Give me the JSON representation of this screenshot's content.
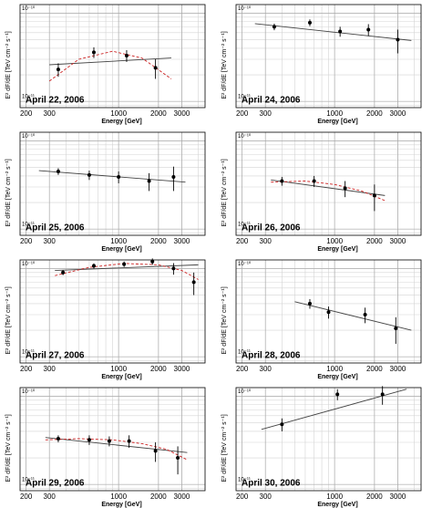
{
  "chart_data": [
    {
      "type": "scatter",
      "title": "April 22, 2006",
      "xlabel": "Energy [GeV]",
      "ylabel": "E² dF/dE [TeV cm⁻² s⁻¹]",
      "xlim": [
        180,
        4500
      ],
      "ylim": [
        8.5e-12,
        1.25e-10
      ],
      "xticks": [
        200,
        300,
        1000,
        2000,
        3000
      ],
      "yticks": [
        {
          "value": 1e-11,
          "label": "10⁻¹¹"
        },
        {
          "value": 1e-10,
          "label": "10⁻¹⁰"
        }
      ],
      "grid": true,
      "color": "#000000",
      "x": [
        350,
        650,
        1150,
        1900
      ],
      "values": [
        2.3e-11,
        3.6e-11,
        3.3e-11,
        2.4e-11
      ],
      "errors": [
        4e-12,
        5e-12,
        5e-12,
        6e-12
      ],
      "fit_x": [
        300,
        2500
      ],
      "fit_values": [
        2.6e-11,
        3.1e-11
      ],
      "curve_x": [
        300,
        500,
        900,
        1500,
        2500
      ],
      "curve_values": [
        1.7e-11,
        3e-11,
        3.7e-11,
        3.1e-11,
        1.8e-11
      ],
      "curve_color": "#cc2222"
    },
    {
      "type": "scatter",
      "title": "April 24, 2006",
      "xlabel": "Energy [GeV]",
      "ylabel": "E² dF/dE [TeV cm⁻² s⁻¹]",
      "xlim": [
        180,
        4500
      ],
      "ylim": [
        8.5e-12,
        1.25e-10
      ],
      "xticks": [
        200,
        300,
        1000,
        2000,
        3000
      ],
      "yticks": [
        {
          "value": 1e-11,
          "label": "10⁻¹¹"
        },
        {
          "value": 1e-10,
          "label": "10⁻¹⁰"
        }
      ],
      "grid": true,
      "color": "#000000",
      "x": [
        350,
        650,
        1100,
        1800,
        3000
      ],
      "values": [
        7e-11,
        7.8e-11,
        6.2e-11,
        6.5e-11,
        5e-11
      ],
      "errors": [
        6e-12,
        7e-12,
        8e-12,
        1e-11,
        1.5e-11
      ],
      "fit_x": [
        250,
        3800
      ],
      "fit_values": [
        7.6e-11,
        4.9e-11
      ]
    },
    {
      "type": "scatter",
      "title": "April 25, 2006",
      "xlabel": "Energy [GeV]",
      "ylabel": "E² dF/dE [TeV cm⁻² s⁻¹]",
      "xlim": [
        180,
        4500
      ],
      "ylim": [
        8.5e-12,
        1.25e-10
      ],
      "xticks": [
        200,
        300,
        1000,
        2000,
        3000
      ],
      "yticks": [
        {
          "value": 1e-11,
          "label": "10⁻¹¹"
        },
        {
          "value": 1e-10,
          "label": "10⁻¹⁰"
        }
      ],
      "grid": true,
      "color": "#000000",
      "x": [
        350,
        600,
        1000,
        1700,
        2600
      ],
      "values": [
        4.5e-11,
        4.1e-11,
        3.9e-11,
        3.5e-11,
        3.9e-11
      ],
      "errors": [
        4e-12,
        5e-12,
        6e-12,
        8e-12,
        1.2e-11
      ],
      "fit_x": [
        250,
        3200
      ],
      "fit_values": [
        4.6e-11,
        3.4e-11
      ]
    },
    {
      "type": "scatter",
      "title": "April 26, 2006",
      "xlabel": "Energy [GeV]",
      "ylabel": "E² dF/dE [TeV cm⁻² s⁻¹]",
      "xlim": [
        180,
        4500
      ],
      "ylim": [
        8.5e-12,
        1.25e-10
      ],
      "xticks": [
        200,
        300,
        1000,
        2000,
        3000
      ],
      "yticks": [
        {
          "value": 1e-11,
          "label": "10⁻¹¹"
        },
        {
          "value": 1e-10,
          "label": "10⁻¹⁰"
        }
      ],
      "grid": true,
      "color": "#000000",
      "x": [
        400,
        700,
        1200,
        2000
      ],
      "values": [
        3.5e-11,
        3.5e-11,
        2.9e-11,
        2.4e-11
      ],
      "errors": [
        4e-12,
        5e-12,
        6e-12,
        8e-12
      ],
      "fit_x": [
        330,
        2400
      ],
      "fit_values": [
        3.6e-11,
        2.4e-11
      ],
      "curve_x": [
        330,
        600,
        1000,
        1600,
        2400
      ],
      "curve_values": [
        3.4e-11,
        3.5e-11,
        3.2e-11,
        2.7e-11,
        2.1e-11
      ],
      "curve_color": "#cc2222"
    },
    {
      "type": "scatter",
      "title": "April 27, 2006",
      "xlabel": "Energy [GeV]",
      "ylabel": "E² dF/dE [TeV cm⁻² s⁻¹]",
      "xlim": [
        180,
        4500
      ],
      "ylim": [
        8.5e-12,
        1.25e-10
      ],
      "xticks": [
        200,
        300,
        1000,
        2000,
        3000
      ],
      "yticks": [
        {
          "value": 1e-11,
          "label": "10⁻¹¹"
        },
        {
          "value": 1e-10,
          "label": "10⁻¹⁰"
        }
      ],
      "grid": true,
      "color": "#000000",
      "x": [
        380,
        650,
        1100,
        1800,
        2600,
        3700
      ],
      "values": [
        9e-11,
        1.07e-10,
        1.12e-10,
        1.2e-10,
        1e-10,
        7e-11
      ],
      "errors": [
        6e-12,
        7e-12,
        8e-12,
        1e-11,
        1.5e-11,
        2e-11
      ],
      "fit_x": [
        330,
        4000
      ],
      "fit_values": [
        9.5e-11,
        1.1e-10
      ],
      "curve_x": [
        330,
        600,
        1100,
        2000,
        3000,
        4000
      ],
      "curve_values": [
        8.3e-11,
        1.03e-10,
        1.14e-10,
        1.1e-10,
        9.5e-11,
        7.5e-11
      ],
      "curve_color": "#cc2222"
    },
    {
      "type": "scatter",
      "title": "April 28, 2006",
      "xlabel": "Energy [GeV]",
      "ylabel": "E² dF/dE [TeV cm⁻² s⁻¹]",
      "xlim": [
        180,
        4500
      ],
      "ylim": [
        8.5e-12,
        1.25e-10
      ],
      "xticks": [
        200,
        300,
        1000,
        2000,
        3000
      ],
      "yticks": [
        {
          "value": 1e-11,
          "label": "10⁻¹¹"
        },
        {
          "value": 1e-10,
          "label": "10⁻¹⁰"
        }
      ],
      "grid": true,
      "color": "#000000",
      "x": [
        650,
        900,
        1700,
        2900
      ],
      "values": [
        4e-11,
        3.2e-11,
        3e-11,
        2.1e-11
      ],
      "errors": [
        5e-12,
        5e-12,
        6e-12,
        7e-12
      ],
      "fit_x": [
        500,
        3800
      ],
      "fit_values": [
        4.2e-11,
        2e-11
      ]
    },
    {
      "type": "scatter",
      "title": "April 29, 2006",
      "xlabel": "Energy [GeV]",
      "ylabel": "E² dF/dE [TeV cm⁻² s⁻¹]",
      "xlim": [
        180,
        4500
      ],
      "ylim": [
        8.5e-12,
        1.25e-10
      ],
      "xticks": [
        200,
        300,
        1000,
        2000,
        3000
      ],
      "yticks": [
        {
          "value": 1e-11,
          "label": "10⁻¹¹"
        },
        {
          "value": 1e-10,
          "label": "10⁻¹⁰"
        }
      ],
      "grid": true,
      "color": "#000000",
      "x": [
        350,
        600,
        850,
        1200,
        1900,
        2800
      ],
      "values": [
        3.3e-11,
        3.2e-11,
        3.1e-11,
        3.1e-11,
        2.4e-11,
        2e-11
      ],
      "errors": [
        3e-12,
        4e-12,
        4e-12,
        5e-12,
        6e-12,
        7e-12
      ],
      "fit_x": [
        280,
        3300
      ],
      "fit_values": [
        3.4e-11,
        2.3e-11
      ],
      "curve_x": [
        280,
        500,
        900,
        1500,
        2300,
        3300
      ],
      "curve_values": [
        3.2e-11,
        3.3e-11,
        3.2e-11,
        2.9e-11,
        2.5e-11,
        1.9e-11
      ],
      "curve_color": "#cc2222"
    },
    {
      "type": "scatter",
      "title": "April 30, 2006",
      "xlabel": "Energy [GeV]",
      "ylabel": "E² dF/dE [TeV cm⁻² s⁻¹]",
      "xlim": [
        180,
        4500
      ],
      "ylim": [
        8.5e-12,
        1.25e-10
      ],
      "xticks": [
        200,
        300,
        1000,
        2000,
        3000
      ],
      "yticks": [
        {
          "value": 1e-11,
          "label": "10⁻¹¹"
        },
        {
          "value": 1e-10,
          "label": "10⁻¹⁰"
        }
      ],
      "grid": true,
      "color": "#000000",
      "x": [
        400,
        1050,
        2300
      ],
      "values": [
        4.8e-11,
        1.05e-10,
        1.05e-10
      ],
      "errors": [
        8e-12,
        1.5e-11,
        2.5e-11
      ],
      "fit_x": [
        280,
        3500
      ],
      "fit_values": [
        4.2e-11,
        1.2e-10
      ]
    }
  ]
}
